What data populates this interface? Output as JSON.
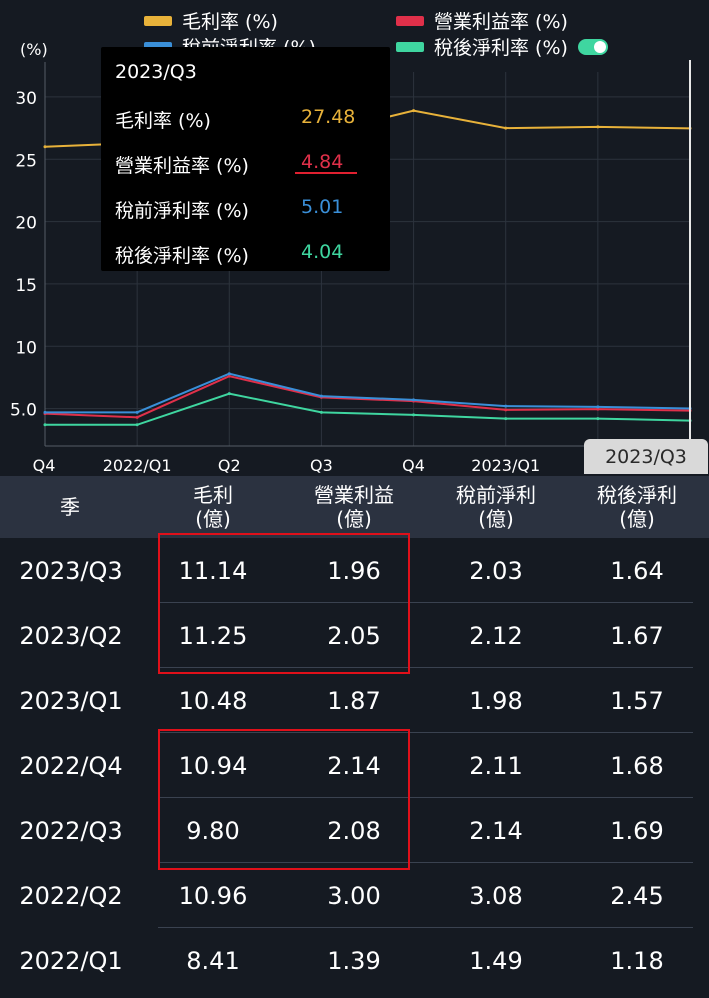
{
  "chart_data": {
    "type": "line",
    "yunit": "(%)",
    "categories": [
      "Q4",
      "2022/Q1",
      "Q2",
      "Q3",
      "Q4",
      "2023/Q1",
      "2023/Q3"
    ],
    "x": [
      "2021/Q4",
      "2022/Q1",
      "2022/Q2",
      "2022/Q3",
      "2022/Q4",
      "2023/Q1",
      "2023/Q2",
      "2023/Q3"
    ],
    "series": [
      {
        "name": "毛利率 (%)",
        "color": "#e8b23a",
        "values": [
          26.0,
          26.3,
          27.6,
          27.1,
          28.9,
          27.5,
          27.6,
          27.48
        ]
      },
      {
        "name": "營業利益率 (%)",
        "color": "#e0304a",
        "values": [
          4.6,
          4.3,
          7.6,
          5.9,
          5.6,
          4.9,
          4.96,
          4.84
        ]
      },
      {
        "name": "稅前淨利率 (%)",
        "color": "#3a8fd8",
        "values": [
          4.7,
          4.7,
          7.8,
          6.0,
          5.7,
          5.2,
          5.14,
          5.01
        ]
      },
      {
        "name": "稅後淨利率 (%)",
        "color": "#3fd6a0",
        "values": [
          3.7,
          3.7,
          6.2,
          4.7,
          4.5,
          4.2,
          4.2,
          4.04
        ]
      }
    ],
    "yticks": [
      "5.0",
      "10",
      "15",
      "20",
      "25",
      "30"
    ],
    "ytick_values": [
      5,
      10,
      15,
      20,
      25,
      30
    ],
    "ylim": [
      2,
      32
    ],
    "grid": true,
    "legend_position": "top"
  },
  "toggle_color": "#3fd6a0",
  "tooltip": {
    "title": "2023/Q3",
    "rows": [
      {
        "label": "毛利率 (%)",
        "value": "27.48",
        "color": "#e8b23a"
      },
      {
        "label": "營業利益率 (%)",
        "value": "4.84",
        "color": "#e0304a"
      },
      {
        "label": "稅前淨利率 (%)",
        "value": "5.01",
        "color": "#3a8fd8"
      },
      {
        "label": "稅後淨利率 (%)",
        "value": "4.04",
        "color": "#3fd6a0"
      }
    ]
  },
  "crosshair_label": "2023/Q3",
  "table": {
    "headers": [
      {
        "l1": "季",
        "l2": ""
      },
      {
        "l1": "毛利",
        "l2": "(億)"
      },
      {
        "l1": "營業利益",
        "l2": "(億)"
      },
      {
        "l1": "稅前淨利",
        "l2": "(億)"
      },
      {
        "l1": "稅後淨利",
        "l2": "(億)"
      }
    ],
    "rows": [
      [
        "2023/Q3",
        "11.14",
        "1.96",
        "2.03",
        "1.64"
      ],
      [
        "2023/Q2",
        "11.25",
        "2.05",
        "2.12",
        "1.67"
      ],
      [
        "2023/Q1",
        "10.48",
        "1.87",
        "1.98",
        "1.57"
      ],
      [
        "2022/Q4",
        "10.94",
        "2.14",
        "2.11",
        "1.68"
      ],
      [
        "2022/Q3",
        "9.80",
        "2.08",
        "2.14",
        "1.69"
      ],
      [
        "2022/Q2",
        "10.96",
        "3.00",
        "3.08",
        "2.45"
      ],
      [
        "2022/Q1",
        "8.41",
        "1.39",
        "1.49",
        "1.18"
      ]
    ]
  }
}
